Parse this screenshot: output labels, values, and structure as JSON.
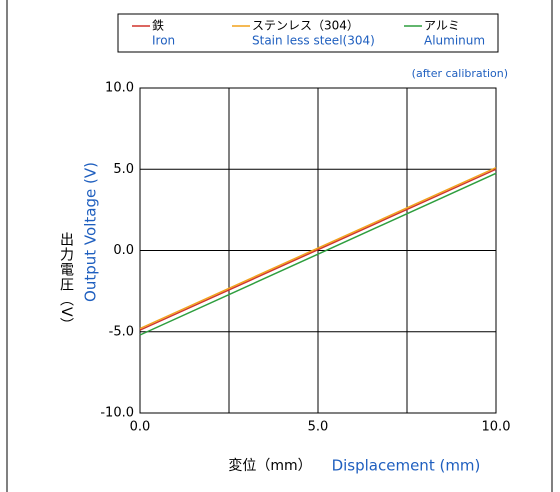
{
  "chart_data": {
    "type": "line",
    "y_label_ja": "出力電圧（V）",
    "y_label": "Output Voltage (V)",
    "x_label_ja": "変位（mm）",
    "x_label": "Displacement (mm)",
    "annotation": "(after calibration)",
    "x": [
      0,
      10
    ],
    "series": [
      {
        "name": "鉄",
        "name_en": "Iron",
        "color": "#d0342c",
        "values": [
          -4.9,
          5.0
        ]
      },
      {
        "name": "ステンレス（304）",
        "name_en": "Stain less steel(304)",
        "color": "#f2a21b",
        "values": [
          -4.8,
          5.1
        ]
      },
      {
        "name": "アルミ",
        "name_en": "Aluminum",
        "color": "#2e9e3e",
        "values": [
          -5.2,
          4.75
        ]
      }
    ],
    "xlim": [
      0,
      10
    ],
    "ylim": [
      -10,
      10
    ],
    "xticks": [
      {
        "value": 0,
        "label": "0.0"
      },
      {
        "value": 5,
        "label": "5.0"
      },
      {
        "value": 10,
        "label": "10.0"
      }
    ],
    "x_minor_grid": [
      2.5,
      7.5
    ],
    "yticks": [
      {
        "value": -10,
        "label": "-10.0"
      },
      {
        "value": -5,
        "label": "-5.0"
      },
      {
        "value": 0,
        "label": "0.0"
      },
      {
        "value": 5,
        "label": "5.0"
      },
      {
        "value": 10,
        "label": "10.0"
      }
    ],
    "grid": true
  }
}
